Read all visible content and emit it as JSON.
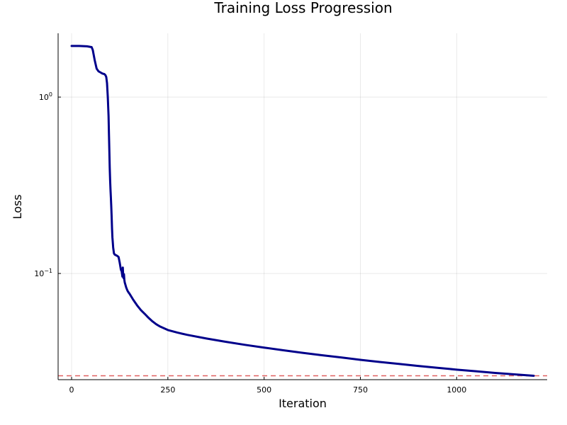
{
  "chart_data": {
    "type": "line",
    "title": "Training Loss Progression",
    "xlabel": "Iteration",
    "ylabel": "Loss",
    "xlim": [
      -35,
      1235
    ],
    "ylim": [
      0.025,
      2.3
    ],
    "y_scale": "log10",
    "grid": true,
    "legend": "none",
    "x_ticks": [
      {
        "value": 0,
        "label": "0"
      },
      {
        "value": 250,
        "label": "250"
      },
      {
        "value": 500,
        "label": "500"
      },
      {
        "value": 750,
        "label": "750"
      },
      {
        "value": 1000,
        "label": "1000"
      }
    ],
    "y_ticks": [
      {
        "value": 1.0,
        "base": "10",
        "exp": "0"
      },
      {
        "value": 0.1,
        "base": "10",
        "exp": "−1"
      }
    ],
    "series": [
      {
        "color": "#00008B",
        "x": [
          0,
          20,
          40,
          52,
          55,
          60,
          65,
          70,
          75,
          80,
          85,
          88,
          90,
          92,
          94,
          96,
          97,
          98,
          99,
          100,
          101,
          102,
          103,
          104,
          105,
          106,
          107,
          108,
          109,
          110,
          112,
          115,
          118,
          122,
          125,
          128,
          130,
          132,
          133,
          134,
          135,
          136,
          137,
          138,
          140,
          142,
          145,
          148,
          150,
          155,
          160,
          170,
          180,
          190,
          200,
          210,
          220,
          230,
          250,
          275,
          300,
          350,
          400,
          450,
          500,
          550,
          600,
          650,
          700,
          750,
          800,
          850,
          900,
          950,
          1000,
          1050,
          1100,
          1150,
          1200
        ],
        "y": [
          1.95,
          1.95,
          1.94,
          1.92,
          1.85,
          1.62,
          1.45,
          1.4,
          1.38,
          1.36,
          1.35,
          1.33,
          1.3,
          1.2,
          1.0,
          0.78,
          0.62,
          0.5,
          0.4,
          0.34,
          0.3,
          0.27,
          0.24,
          0.21,
          0.18,
          0.16,
          0.15,
          0.14,
          0.135,
          0.13,
          0.128,
          0.127,
          0.126,
          0.124,
          0.115,
          0.105,
          0.103,
          0.096,
          0.108,
          0.097,
          0.094,
          0.099,
          0.092,
          0.089,
          0.086,
          0.083,
          0.08,
          0.078,
          0.077,
          0.074,
          0.071,
          0.066,
          0.062,
          0.059,
          0.056,
          0.0535,
          0.0515,
          0.05,
          0.0478,
          0.0462,
          0.0449,
          0.0428,
          0.041,
          0.0394,
          0.038,
          0.0367,
          0.0355,
          0.0344,
          0.0334,
          0.0324,
          0.0315,
          0.0307,
          0.0299,
          0.0292,
          0.0285,
          0.0279,
          0.0273,
          0.0268,
          0.0263
        ]
      }
    ],
    "hlines": [
      {
        "y": 0.0263,
        "color": "#E06060",
        "style": "dashed"
      }
    ]
  }
}
